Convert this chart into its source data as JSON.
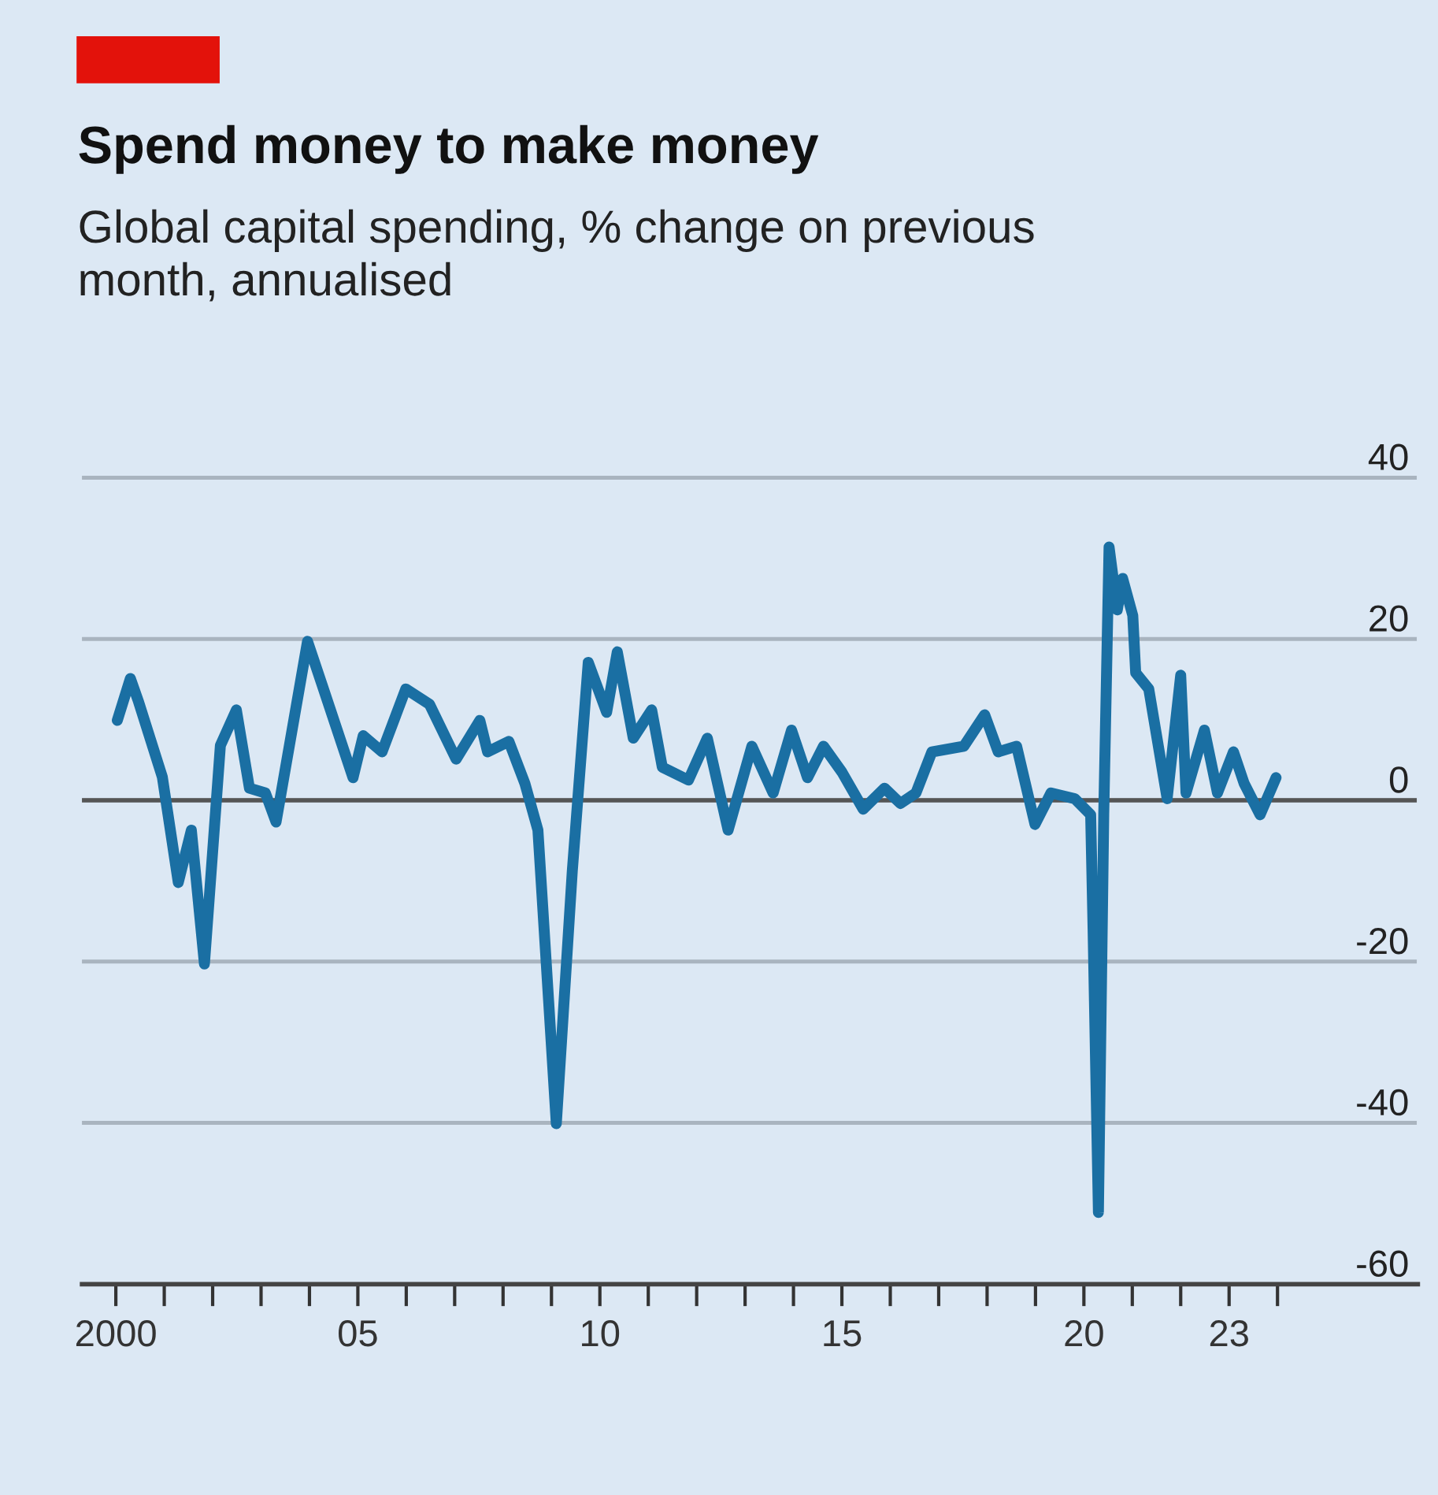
{
  "chart_data": {
    "type": "line",
    "title": "Spend money to make money",
    "subtitle": "Global capital spending, % change on previous month, annualised",
    "x": [
      2000.03,
      2000.3,
      2000.47,
      2000.96,
      2001.29,
      2001.56,
      2001.83,
      2002.16,
      2002.49,
      2002.76,
      2003.09,
      2003.31,
      2003.96,
      2004.29,
      2004.9,
      2005.11,
      2005.5,
      2005.99,
      2006.48,
      2007.03,
      2007.52,
      2007.68,
      2008.12,
      2008.45,
      2008.72,
      2009.1,
      2009.43,
      2009.76,
      2010.14,
      2010.36,
      2010.69,
      2011.07,
      2011.29,
      2011.83,
      2012.22,
      2012.65,
      2013.14,
      2013.58,
      2013.96,
      2014.29,
      2014.62,
      2015.0,
      2015.44,
      2015.88,
      2016.21,
      2016.53,
      2016.86,
      2017.52,
      2017.95,
      2018.23,
      2018.61,
      2018.99,
      2019.32,
      2019.81,
      2020.14,
      2020.19,
      2020.3,
      2020.41,
      2020.52,
      2020.69,
      2020.8,
      2021.01,
      2021.07,
      2021.34,
      2021.72,
      2022.0,
      2022.11,
      2022.49,
      2022.76,
      2023.09,
      2023.31,
      2023.64,
      2023.97
    ],
    "series": [
      {
        "color": "#1a6fa3",
        "values": [
          9.9,
          15.1,
          12.2,
          2.9,
          -10.2,
          -3.7,
          -20.3,
          6.8,
          11.2,
          1.5,
          0.9,
          -2.7,
          19.7,
          13.8,
          2.8,
          8,
          6,
          13.8,
          11.9,
          5.1,
          9.9,
          6,
          7.3,
          2.1,
          -3.7,
          -40.1,
          -8.8,
          17.1,
          10.9,
          18.4,
          7.7,
          11.2,
          4.1,
          2.5,
          7.7,
          -3.7,
          6.7,
          0.9,
          8.7,
          2.8,
          6.7,
          3.5,
          -1.1,
          1.5,
          -0.4,
          0.9,
          6,
          6.7,
          10.6,
          6,
          6.7,
          -3,
          0.9,
          0.2,
          -1.8,
          -16,
          -51.1,
          -1.8,
          31.4,
          23.6,
          27.5,
          22.9,
          15.8,
          13.8,
          0.2,
          15.5,
          0.9,
          8.7,
          0.9,
          6,
          2.1,
          -1.8,
          2.8
        ]
      }
    ],
    "xlim": [
      1999.3,
      2026.9
    ],
    "ylim": [
      -60,
      42.5
    ],
    "xticks": [
      {
        "value": 2000,
        "label": "2000"
      },
      {
        "value": 2001,
        "label": null
      },
      {
        "value": 2002,
        "label": null
      },
      {
        "value": 2003,
        "label": null
      },
      {
        "value": 2004,
        "label": null
      },
      {
        "value": 2005,
        "label": "05"
      },
      {
        "value": 2006,
        "label": null
      },
      {
        "value": 2007,
        "label": null
      },
      {
        "value": 2008,
        "label": null
      },
      {
        "value": 2009,
        "label": null
      },
      {
        "value": 2010,
        "label": "10"
      },
      {
        "value": 2011,
        "label": null
      },
      {
        "value": 2012,
        "label": null
      },
      {
        "value": 2013,
        "label": null
      },
      {
        "value": 2014,
        "label": null
      },
      {
        "value": 2015,
        "label": "15"
      },
      {
        "value": 2016,
        "label": null
      },
      {
        "value": 2017,
        "label": null
      },
      {
        "value": 2018,
        "label": null
      },
      {
        "value": 2019,
        "label": null
      },
      {
        "value": 2020,
        "label": "20"
      },
      {
        "value": 2021,
        "label": null
      },
      {
        "value": 2022,
        "label": null
      },
      {
        "value": 2023,
        "label": "23"
      },
      {
        "value": 2024,
        "label": null
      }
    ],
    "yticks": [
      -60,
      -40,
      -20,
      0,
      20,
      40
    ],
    "ref_lines": [
      {
        "axis": "y",
        "value": 0,
        "color": "#555555"
      }
    ],
    "grid": "y",
    "legend": false,
    "marker": "none",
    "line_style": "solid"
  }
}
